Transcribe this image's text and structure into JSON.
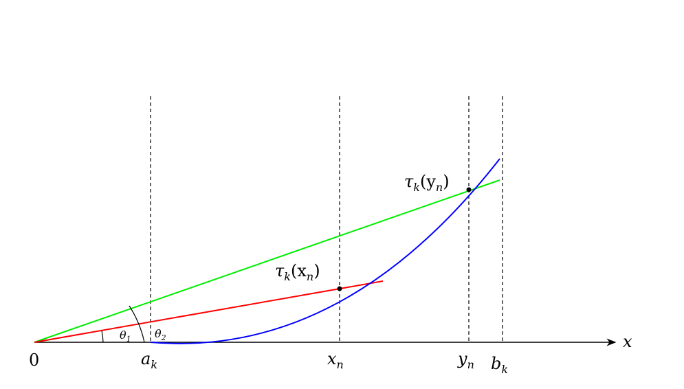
{
  "colors": {
    "curve": "#0000ff",
    "chord_x": "#ff0000",
    "chord_y": "#00ee00",
    "axis": "#000000",
    "guide": "#000000"
  },
  "labels": {
    "origin": "0",
    "axis_x": "x",
    "a": "a",
    "a_sub": "k",
    "xn": "x",
    "xn_sub": "n",
    "yn": "y",
    "yn_sub": "n",
    "b": "b",
    "b_sub": "k",
    "theta1": "θ",
    "theta1_sub": "1",
    "theta2": "θ",
    "theta2_sub": "2",
    "tau_x": "τ",
    "tau_x_sub": "k",
    "tau_x_arg": "(x",
    "tau_x_arg_sub": "n",
    "tau_x_close": ")",
    "tau_y": "τ",
    "tau_y_sub": "k",
    "tau_y_arg": "(y",
    "tau_y_arg_sub": "n",
    "tau_y_close": ")"
  }
}
